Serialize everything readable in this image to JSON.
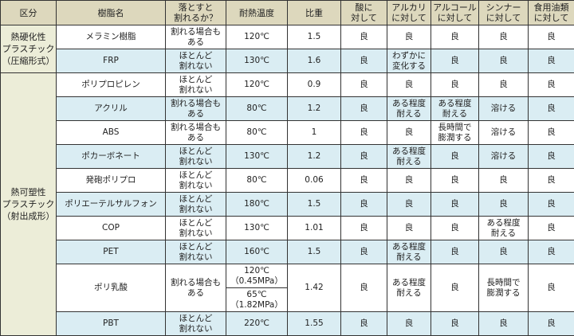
{
  "colors": {
    "header": "#ddd8bd",
    "category": "#ecedd8",
    "row_alt": "#daedf3"
  },
  "headers": [
    "区分",
    "樹脂名",
    "落とすと\n割れるか？",
    "耐熱温度",
    "比重",
    "酸に\n対して",
    "アルカリ\nに対して",
    "アルコール\nに対して",
    "シンナー\nに対して",
    "食用油類\nに対して"
  ],
  "categories": [
    {
      "label": "熱硬化性\nプラスチック\n（圧縮形式）",
      "rows": 2
    },
    {
      "label": "熱可塑性\nプラスチック\n（射出成形）",
      "rows": 10
    }
  ],
  "rows": [
    {
      "name": "メラミン樹脂",
      "drop": "割れる場合も\nある",
      "heat": "120℃",
      "sg": "1.5",
      "acid": "良",
      "alkali": "良",
      "alcohol": "良",
      "thinner": "良",
      "oil": "良"
    },
    {
      "name": "FRP",
      "drop": "ほとんど\n割れない",
      "heat": "130℃",
      "sg": "1.6",
      "acid": "良",
      "alkali": "わずかに\n変化する",
      "alcohol": "良",
      "thinner": "良",
      "oil": "良"
    },
    {
      "name": "ポリプロピレン",
      "drop": "ほとんど\n割れない",
      "heat": "120℃",
      "sg": "0.9",
      "acid": "良",
      "alkali": "良",
      "alcohol": "良",
      "thinner": "良",
      "oil": "良"
    },
    {
      "name": "アクリル",
      "drop": "割れる場合も\nある",
      "heat": "80℃",
      "sg": "1.2",
      "acid": "良",
      "alkali": "ある程度\n耐える",
      "alcohol": "ある程度\n耐える",
      "thinner": "溶ける",
      "oil": "良"
    },
    {
      "name": "ABS",
      "drop": "割れる場合も\nある",
      "heat": "80℃",
      "sg": "1",
      "acid": "良",
      "alkali": "良",
      "alcohol": "長時間で\n膨潤する",
      "thinner": "溶ける",
      "oil": "良"
    },
    {
      "name": "ポカーボネート",
      "drop": "ほとんど\n割れない",
      "heat": "130℃",
      "sg": "1.2",
      "acid": "良",
      "alkali": "ある程度\n耐える",
      "alcohol": "良",
      "thinner": "溶ける",
      "oil": "良"
    },
    {
      "name": "発砲ポリプロ",
      "drop": "ほとんど\n割れない",
      "heat": "80℃",
      "sg": "0.06",
      "acid": "良",
      "alkali": "良",
      "alcohol": "良",
      "thinner": "良",
      "oil": "良"
    },
    {
      "name": "ポリエーテルサルフォン",
      "drop": "ほとんど\n割れない",
      "heat": "180℃",
      "sg": "1.5",
      "acid": "良",
      "alkali": "良",
      "alcohol": "良",
      "thinner": "良",
      "oil": "良"
    },
    {
      "name": "COP",
      "drop": "ほとんど\n割れない",
      "heat": "130℃",
      "sg": "1.01",
      "acid": "良",
      "alkali": "良",
      "alcohol": "良",
      "thinner": "ある程度\n耐える",
      "oil": "良"
    },
    {
      "name": "PET",
      "drop": "ほとんど\n割れない",
      "heat": "160℃",
      "sg": "1.5",
      "acid": "良",
      "alkali": "ある程度\n耐える",
      "alcohol": "良",
      "thinner": "良",
      "oil": "良"
    },
    {
      "name": "ポリ乳酸",
      "drop": "割れる場合も\nある",
      "heat": "120℃\n（0.45MPa）",
      "heat2": "65℃\n（1.82MPa）",
      "sg": "1.42",
      "acid": "良",
      "alkali": "ある程度\n耐える",
      "alcohol": "良",
      "thinner": "長時間で\n膨潤する",
      "oil": "良"
    },
    {
      "name": "PBT",
      "drop": "ほとんど\n割れない",
      "heat": "220℃",
      "sg": "1.55",
      "acid": "良",
      "alkali": "良",
      "alcohol": "良",
      "thinner": "良",
      "oil": "良"
    }
  ]
}
